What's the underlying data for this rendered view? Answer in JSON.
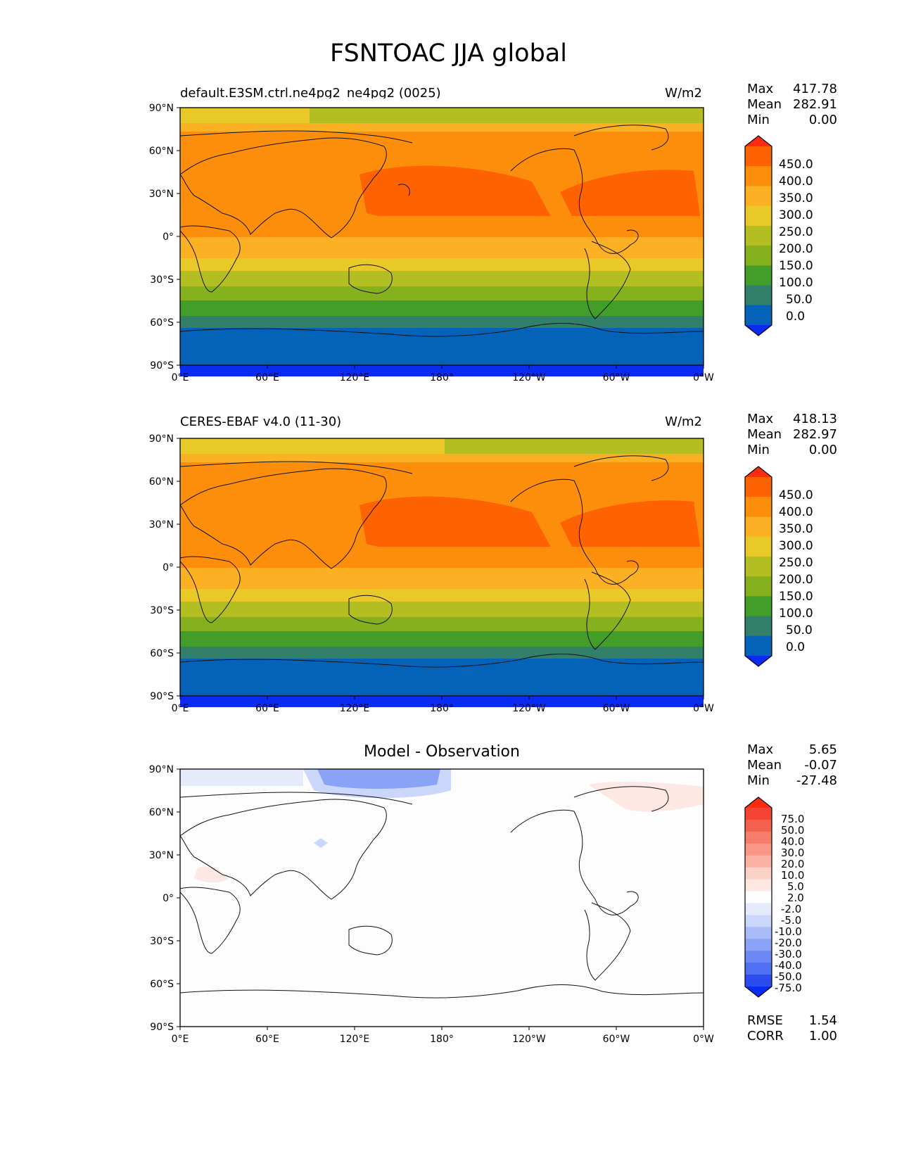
{
  "figure": {
    "title": "FSNTOAC JJA global"
  },
  "axes": {
    "lat_ticks": [
      "90°N",
      "60°N",
      "30°N",
      "0°",
      "30°S",
      "60°S",
      "90°S"
    ],
    "lon_ticks": [
      "0°E",
      "60°E",
      "120°E",
      "180°",
      "120°W",
      "60°W",
      "0°W"
    ]
  },
  "panels": [
    {
      "title": "default.E3SM.ctrl.ne4pg2_ne4pg2 (0025)",
      "units": "W/m2",
      "stats": [
        {
          "label": "Max",
          "value": "417.78"
        },
        {
          "label": "Mean",
          "value": "282.91"
        },
        {
          "label": "Min",
          "value": "0.00"
        }
      ]
    },
    {
      "title": "CERES-EBAF v4.0 (11-30)",
      "units": "W/m2",
      "stats": [
        {
          "label": "Max",
          "value": "418.13"
        },
        {
          "label": "Mean",
          "value": "282.97"
        },
        {
          "label": "Min",
          "value": "0.00"
        }
      ]
    },
    {
      "title": "Model - Observation",
      "units": "",
      "stats": [
        {
          "label": "Max",
          "value": "5.65"
        },
        {
          "label": "Mean",
          "value": "-0.07"
        },
        {
          "label": "Min",
          "value": "-27.48"
        }
      ],
      "metrics": [
        {
          "label": "RMSE",
          "value": "1.54"
        },
        {
          "label": "CORR",
          "value": "1.00"
        }
      ]
    }
  ],
  "colorbars": {
    "field": {
      "labels": [
        "450.0",
        "400.0",
        "350.0",
        "300.0",
        "250.0",
        "200.0",
        "150.0",
        "100.0",
        "50.0",
        "0.0"
      ],
      "colors": [
        "#ff2a0f",
        "#ff6200",
        "#fd8e0c",
        "#fbb123",
        "#e8c928",
        "#b2be22",
        "#86b11f",
        "#429e29",
        "#327f6a",
        "#0463b8",
        "#0a2bf2"
      ]
    },
    "diff": {
      "labels": [
        "75.0",
        "50.0",
        "40.0",
        "30.0",
        "20.0",
        "10.0",
        "5.0",
        "2.0",
        "-2.0",
        "-5.0",
        "-10.0",
        "-20.0",
        "-30.0",
        "-40.0",
        "-50.0",
        "-75.0"
      ],
      "colors": [
        "#ff2a0f",
        "#f64434",
        "#f5614f",
        "#f77c6b",
        "#f99688",
        "#fbb2a5",
        "#fcd1c8",
        "#fde8e3",
        "#ffffff",
        "#e6ebfc",
        "#cbd6fb",
        "#a9bbf8",
        "#8ba3f6",
        "#6b88f4",
        "#4f70f2",
        "#2b4df0",
        "#0a2bf2"
      ]
    }
  }
}
